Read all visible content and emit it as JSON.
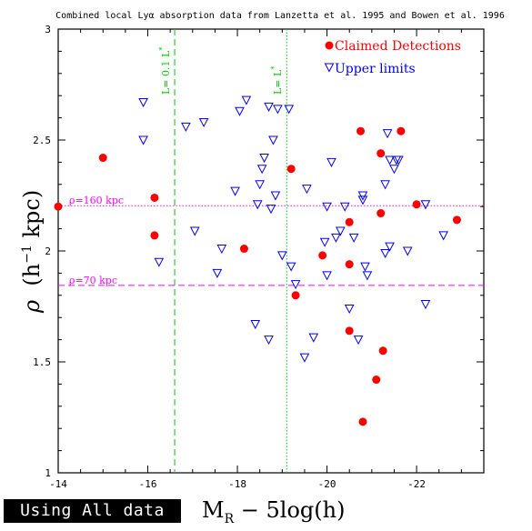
{
  "chart_data": {
    "type": "scatter",
    "title": "Combined local Lyα absorption data from Lanzetta et al. 1995 and Bowen et al. 1996",
    "xlabel": "M",
    "xlabel_sub": "R",
    "xlabel_rest": " − 5log(h)",
    "ylabel": "ρ",
    "ylabel_unit_pre": "(h",
    "ylabel_unit_sup": "−1",
    "ylabel_unit_post": " kpc)",
    "xlim": [
      -14,
      -23.5
    ],
    "ylim": [
      1,
      3
    ],
    "xticks": [
      -14,
      -16,
      -18,
      -20,
      -22
    ],
    "xtick_labels": [
      "-14",
      "-16",
      "-18",
      "-20",
      "-22"
    ],
    "yticks": [
      1,
      1.5,
      2,
      2.5,
      3
    ],
    "ytick_labels": [
      "1",
      "1.5",
      "2",
      "2.5",
      "3"
    ],
    "legend_position": "top-right",
    "colors": {
      "detections": "#ff0000",
      "upper_limits": "#0000ff",
      "luminosity_lines": "#00cc00",
      "rho_lines": "#ff00ff"
    },
    "series": [
      {
        "name": "Claimed Detections",
        "marker": "circle",
        "points": [
          [
            -14.0,
            2.2
          ],
          [
            -15.0,
            2.42
          ],
          [
            -16.15,
            2.24
          ],
          [
            -16.15,
            2.07
          ],
          [
            -18.15,
            2.01
          ],
          [
            -19.2,
            2.37
          ],
          [
            -19.3,
            1.8
          ],
          [
            -19.9,
            1.98
          ],
          [
            -20.5,
            2.13
          ],
          [
            -20.5,
            1.94
          ],
          [
            -20.5,
            1.64
          ],
          [
            -20.75,
            2.54
          ],
          [
            -20.8,
            1.23
          ],
          [
            -21.1,
            1.42
          ],
          [
            -21.2,
            2.44
          ],
          [
            -21.2,
            2.17
          ],
          [
            -21.25,
            1.55
          ],
          [
            -21.65,
            2.54
          ],
          [
            -22.0,
            2.21
          ],
          [
            -22.9,
            2.14
          ]
        ]
      },
      {
        "name": "Upper limits",
        "marker": "triangle-down",
        "points": [
          [
            -15.9,
            2.67
          ],
          [
            -15.9,
            2.5
          ],
          [
            -16.25,
            1.95
          ],
          [
            -16.85,
            2.56
          ],
          [
            -17.05,
            2.09
          ],
          [
            -17.25,
            2.58
          ],
          [
            -17.55,
            1.9
          ],
          [
            -17.65,
            2.01
          ],
          [
            -17.95,
            2.27
          ],
          [
            -18.05,
            2.63
          ],
          [
            -18.2,
            2.68
          ],
          [
            -18.4,
            1.67
          ],
          [
            -18.45,
            2.21
          ],
          [
            -18.5,
            2.3
          ],
          [
            -18.55,
            2.37
          ],
          [
            -18.6,
            2.42
          ],
          [
            -18.7,
            1.6
          ],
          [
            -18.7,
            2.65
          ],
          [
            -18.75,
            2.19
          ],
          [
            -18.8,
            2.5
          ],
          [
            -18.85,
            2.25
          ],
          [
            -18.9,
            2.64
          ],
          [
            -19.0,
            1.98
          ],
          [
            -19.15,
            2.64
          ],
          [
            -19.2,
            1.93
          ],
          [
            -19.3,
            1.85
          ],
          [
            -19.5,
            1.52
          ],
          [
            -19.55,
            2.28
          ],
          [
            -19.7,
            1.61
          ],
          [
            -19.95,
            2.04
          ],
          [
            -20.0,
            1.89
          ],
          [
            -20.0,
            2.2
          ],
          [
            -20.1,
            2.4
          ],
          [
            -20.2,
            2.06
          ],
          [
            -20.3,
            2.09
          ],
          [
            -20.4,
            2.2
          ],
          [
            -20.5,
            1.74
          ],
          [
            -20.6,
            2.06
          ],
          [
            -20.7,
            1.6
          ],
          [
            -20.8,
            2.25
          ],
          [
            -20.8,
            2.23
          ],
          [
            -20.85,
            1.93
          ],
          [
            -20.9,
            1.89
          ],
          [
            -21.3,
            2.3
          ],
          [
            -21.3,
            1.99
          ],
          [
            -21.35,
            2.53
          ],
          [
            -21.4,
            2.02
          ],
          [
            -21.4,
            2.41
          ],
          [
            -21.5,
            2.37
          ],
          [
            -21.55,
            2.41
          ],
          [
            -21.6,
            2.41
          ],
          [
            -21.8,
            2.0
          ],
          [
            -22.2,
            2.21
          ],
          [
            -22.2,
            1.76
          ],
          [
            -22.6,
            2.07
          ]
        ]
      }
    ],
    "reference_lines": [
      {
        "orientation": "vertical",
        "value": -16.6,
        "label": "L= 0.1 L*",
        "label_main": "L= 0.1 L",
        "label_sup": "*",
        "style": "dashed",
        "color": "#00cc00"
      },
      {
        "orientation": "vertical",
        "value": -19.1,
        "label": "L= L*",
        "label_main": "L= L",
        "label_sup": "*",
        "style": "dotted",
        "color": "#00cc00"
      },
      {
        "orientation": "horizontal",
        "value": 2.204,
        "label": "ρ=160 kpc",
        "style": "dotted",
        "color": "#ff00ff"
      },
      {
        "orientation": "horizontal",
        "value": 1.845,
        "label": "ρ=70 kpc",
        "style": "dashed",
        "color": "#ff00ff"
      }
    ]
  },
  "footer_badge": "Using All data"
}
